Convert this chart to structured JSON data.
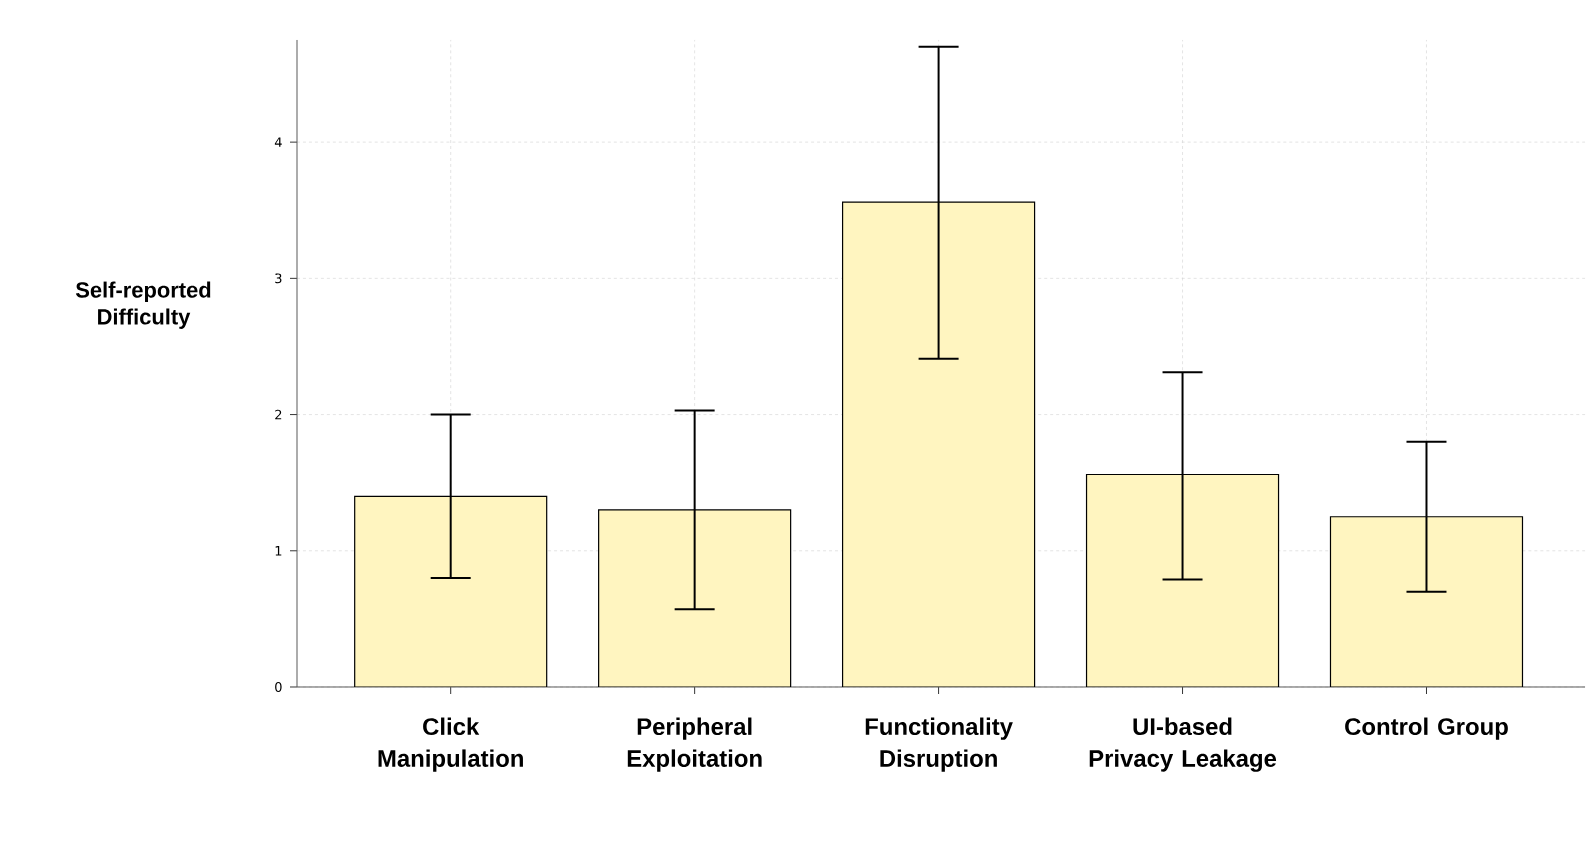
{
  "chart_data": {
    "type": "bar",
    "ylabel": "Self-reported Difficulty",
    "categories": [
      "Click Manipulation",
      "Peripheral Exploitation",
      "Functionality Disruption",
      "UI-based Privacy Leakage",
      "Control Group"
    ],
    "values": [
      1.4,
      1.3,
      3.56,
      1.56,
      1.25
    ],
    "errors": [
      [
        0.8,
        2.0
      ],
      [
        0.57,
        2.03
      ],
      [
        2.41,
        4.7
      ],
      [
        0.79,
        2.31
      ],
      [
        0.7,
        1.8
      ]
    ],
    "color": "#fff5c0",
    "ylim": [
      0,
      4.75
    ],
    "yticks": [
      0,
      1,
      2,
      3,
      4
    ],
    "grid": true
  }
}
